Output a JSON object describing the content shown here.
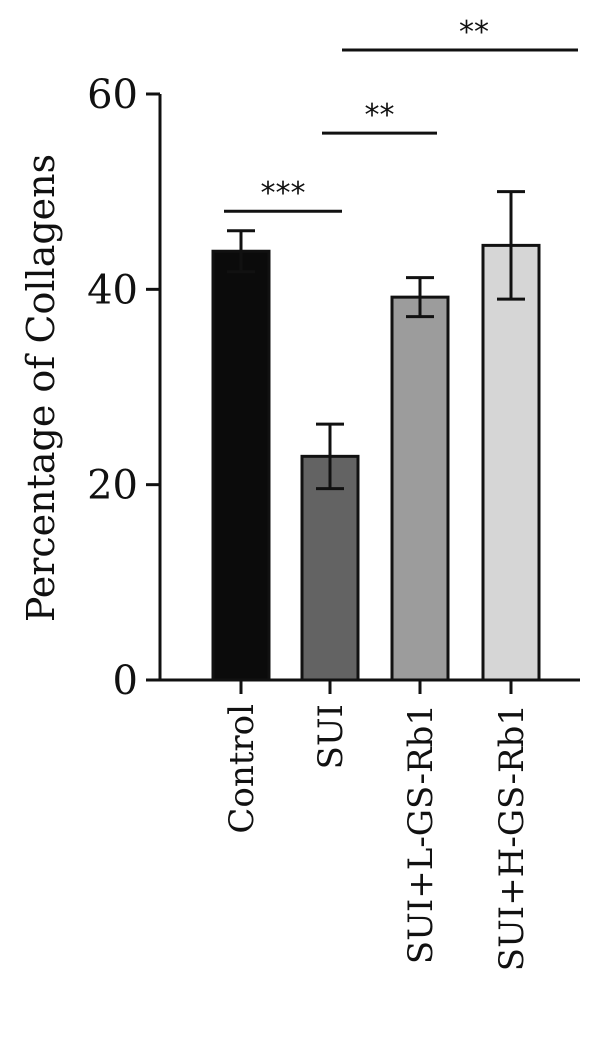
{
  "chart_data": {
    "type": "bar",
    "title": "",
    "xlabel": "",
    "ylabel": "Percentage of Collagens",
    "ylim": [
      0,
      60
    ],
    "yticks": [
      "0",
      "20",
      "40",
      "60"
    ],
    "grid": false,
    "categories": [
      "Control",
      "SUI",
      "SUI+L-GS-Rb1",
      "SUI+H-GS-Rb1"
    ],
    "values": [
      43.9,
      22.9,
      39.2,
      44.5
    ],
    "errors": [
      2.1,
      3.3,
      2.0,
      5.5
    ],
    "colors": [
      "#0b0b0b",
      "#636363",
      "#9c9c9c",
      "#d6d6d6"
    ],
    "significance": [
      {
        "from": "Control",
        "to": "SUI",
        "label": "***",
        "y": 48.0
      },
      {
        "from": "SUI",
        "to": "SUI+L-GS-Rb1",
        "label": "**",
        "y": 56.0
      },
      {
        "from": "SUI",
        "to": "SUI+H-GS-Rb1",
        "label": "**",
        "y": 65.0
      }
    ]
  }
}
